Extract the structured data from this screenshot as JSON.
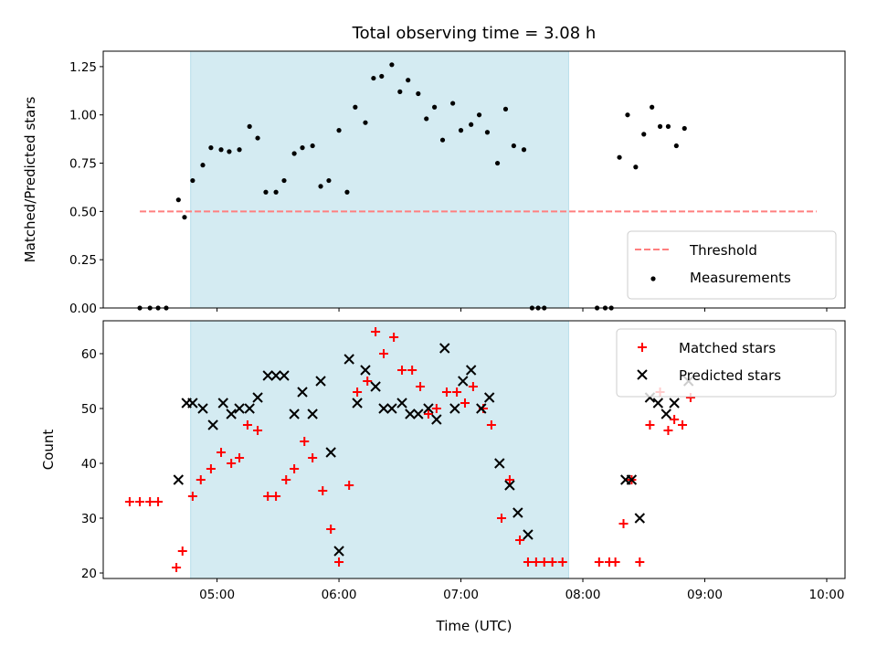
{
  "title": "Total observing time = 3.08 h",
  "chart_data": [
    {
      "type": "scatter",
      "panel": "top",
      "ylabel": "Matched/Predicted stars",
      "ylim": [
        0,
        1.33
      ],
      "yticks": [
        "0.00",
        "0.25",
        "0.50",
        "0.75",
        "1.00",
        "1.25"
      ],
      "xlim": [
        "04:04",
        "10:09"
      ],
      "grid": false,
      "legend": "lower right",
      "shaded_interval": [
        "04:47",
        "07:53"
      ],
      "shade_color": "#add8e6",
      "threshold": {
        "name": "Threshold",
        "value": 0.5,
        "x": [
          "04:22",
          "09:55"
        ],
        "color": "#ff7f7f",
        "style": "dashed"
      },
      "series": [
        {
          "name": "Measurements",
          "marker": "dot",
          "color": "#000000",
          "points": [
            [
              "04:22",
              0.0
            ],
            [
              "04:27",
              0.0
            ],
            [
              "04:31",
              0.0
            ],
            [
              "04:35",
              0.0
            ],
            [
              "04:41",
              0.56
            ],
            [
              "04:44",
              0.47
            ],
            [
              "04:48",
              0.66
            ],
            [
              "04:53",
              0.74
            ],
            [
              "04:57",
              0.83
            ],
            [
              "05:02",
              0.82
            ],
            [
              "05:06",
              0.81
            ],
            [
              "05:11",
              0.82
            ],
            [
              "05:16",
              0.94
            ],
            [
              "05:20",
              0.88
            ],
            [
              "05:24",
              0.6
            ],
            [
              "05:29",
              0.6
            ],
            [
              "05:33",
              0.66
            ],
            [
              "05:38",
              0.8
            ],
            [
              "05:42",
              0.83
            ],
            [
              "05:47",
              0.84
            ],
            [
              "05:51",
              0.63
            ],
            [
              "05:55",
              0.66
            ],
            [
              "06:00",
              0.92
            ],
            [
              "06:04",
              0.6
            ],
            [
              "06:08",
              1.04
            ],
            [
              "06:13",
              0.96
            ],
            [
              "06:17",
              1.19
            ],
            [
              "06:21",
              1.2
            ],
            [
              "06:26",
              1.26
            ],
            [
              "06:30",
              1.12
            ],
            [
              "06:34",
              1.18
            ],
            [
              "06:39",
              1.11
            ],
            [
              "06:43",
              0.98
            ],
            [
              "06:47",
              1.04
            ],
            [
              "06:51",
              0.87
            ],
            [
              "06:56",
              1.06
            ],
            [
              "07:00",
              0.92
            ],
            [
              "07:05",
              0.95
            ],
            [
              "07:09",
              1.0
            ],
            [
              "07:13",
              0.91
            ],
            [
              "07:18",
              0.75
            ],
            [
              "07:22",
              1.03
            ],
            [
              "07:26",
              0.84
            ],
            [
              "07:31",
              0.82
            ],
            [
              "07:35",
              0.0
            ],
            [
              "07:38",
              0.0
            ],
            [
              "07:41",
              0.0
            ],
            [
              "08:07",
              0.0
            ],
            [
              "08:11",
              0.0
            ],
            [
              "08:14",
              0.0
            ],
            [
              "08:18",
              0.78
            ],
            [
              "08:22",
              1.0
            ],
            [
              "08:26",
              0.73
            ],
            [
              "08:30",
              0.9
            ],
            [
              "08:34",
              1.04
            ],
            [
              "08:38",
              0.94
            ],
            [
              "08:42",
              0.94
            ],
            [
              "08:46",
              0.84
            ],
            [
              "08:50",
              0.93
            ]
          ]
        }
      ]
    },
    {
      "type": "scatter",
      "panel": "bottom",
      "xlabel": "Time (UTC)",
      "ylabel": "Count",
      "ylim": [
        19,
        66
      ],
      "yticks": [
        "20",
        "30",
        "40",
        "50",
        "60"
      ],
      "xlim": [
        "04:04",
        "10:09"
      ],
      "xticks": [
        "05:00",
        "06:00",
        "07:00",
        "08:00",
        "09:00",
        "10:00"
      ],
      "grid": false,
      "legend": "upper right",
      "shaded_interval": [
        "04:47",
        "07:53"
      ],
      "shade_color": "#add8e6",
      "series": [
        {
          "name": "Matched stars",
          "marker": "plus",
          "color": "#ff0000",
          "points": [
            [
              "04:17",
              33
            ],
            [
              "04:22",
              33
            ],
            [
              "04:27",
              33
            ],
            [
              "04:31",
              33
            ],
            [
              "04:40",
              21
            ],
            [
              "04:43",
              24
            ],
            [
              "04:48",
              34
            ],
            [
              "04:52",
              37
            ],
            [
              "04:57",
              39
            ],
            [
              "05:02",
              42
            ],
            [
              "05:07",
              40
            ],
            [
              "05:11",
              41
            ],
            [
              "05:15",
              47
            ],
            [
              "05:20",
              46
            ],
            [
              "05:25",
              34
            ],
            [
              "05:29",
              34
            ],
            [
              "05:34",
              37
            ],
            [
              "05:38",
              39
            ],
            [
              "05:43",
              44
            ],
            [
              "05:47",
              41
            ],
            [
              "05:52",
              35
            ],
            [
              "05:56",
              28
            ],
            [
              "06:00",
              22
            ],
            [
              "06:05",
              36
            ],
            [
              "06:09",
              53
            ],
            [
              "06:14",
              55
            ],
            [
              "06:18",
              64
            ],
            [
              "06:22",
              60
            ],
            [
              "06:27",
              63
            ],
            [
              "06:31",
              57
            ],
            [
              "06:36",
              57
            ],
            [
              "06:40",
              54
            ],
            [
              "06:44",
              49
            ],
            [
              "06:48",
              50
            ],
            [
              "06:53",
              53
            ],
            [
              "06:58",
              53
            ],
            [
              "07:02",
              51
            ],
            [
              "07:06",
              54
            ],
            [
              "07:11",
              50
            ],
            [
              "07:15",
              47
            ],
            [
              "07:20",
              30
            ],
            [
              "07:24",
              37
            ],
            [
              "07:29",
              26
            ],
            [
              "07:33",
              22
            ],
            [
              "07:37",
              22
            ],
            [
              "07:41",
              22
            ],
            [
              "07:45",
              22
            ],
            [
              "07:50",
              22
            ],
            [
              "08:08",
              22
            ],
            [
              "08:13",
              22
            ],
            [
              "08:16",
              22
            ],
            [
              "08:20",
              29
            ],
            [
              "08:24",
              37
            ],
            [
              "08:28",
              22
            ],
            [
              "08:33",
              47
            ],
            [
              "08:38",
              53
            ],
            [
              "08:42",
              46
            ],
            [
              "08:45",
              48
            ],
            [
              "08:49",
              47
            ],
            [
              "08:53",
              52
            ]
          ]
        },
        {
          "name": "Predicted stars",
          "marker": "x",
          "color": "#000000",
          "points": [
            [
              "04:41",
              37
            ],
            [
              "04:45",
              51
            ],
            [
              "04:48",
              51
            ],
            [
              "04:53",
              50
            ],
            [
              "04:58",
              47
            ],
            [
              "05:03",
              51
            ],
            [
              "05:07",
              49
            ],
            [
              "05:11",
              50
            ],
            [
              "05:16",
              50
            ],
            [
              "05:20",
              52
            ],
            [
              "05:25",
              56
            ],
            [
              "05:29",
              56
            ],
            [
              "05:33",
              56
            ],
            [
              "05:38",
              49
            ],
            [
              "05:42",
              53
            ],
            [
              "05:47",
              49
            ],
            [
              "05:51",
              55
            ],
            [
              "05:56",
              42
            ],
            [
              "06:00",
              24
            ],
            [
              "06:05",
              59
            ],
            [
              "06:09",
              51
            ],
            [
              "06:13",
              57
            ],
            [
              "06:18",
              54
            ],
            [
              "06:22",
              50
            ],
            [
              "06:26",
              50
            ],
            [
              "06:31",
              51
            ],
            [
              "06:35",
              49
            ],
            [
              "06:39",
              49
            ],
            [
              "06:44",
              50
            ],
            [
              "06:48",
              48
            ],
            [
              "06:52",
              61
            ],
            [
              "06:57",
              50
            ],
            [
              "07:01",
              55
            ],
            [
              "07:05",
              57
            ],
            [
              "07:10",
              50
            ],
            [
              "07:14",
              52
            ],
            [
              "07:19",
              40
            ],
            [
              "07:24",
              36
            ],
            [
              "07:28",
              31
            ],
            [
              "07:33",
              27
            ],
            [
              "08:21",
              37
            ],
            [
              "08:24",
              37
            ],
            [
              "08:28",
              30
            ],
            [
              "08:33",
              52
            ],
            [
              "08:37",
              51
            ],
            [
              "08:41",
              49
            ],
            [
              "08:45",
              51
            ],
            [
              "08:52",
              55
            ]
          ]
        }
      ]
    }
  ]
}
